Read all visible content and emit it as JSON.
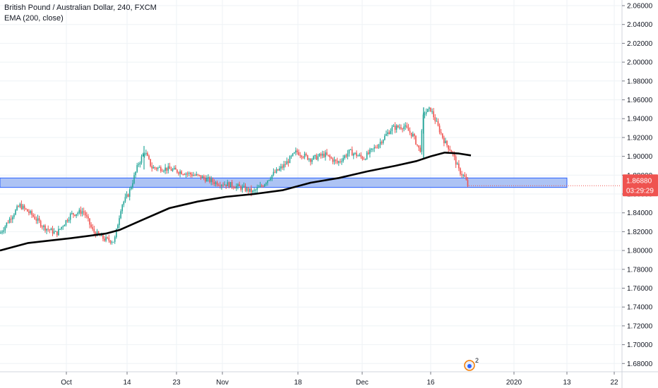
{
  "legend": {
    "symbol": "British Pound / Australian Dollar, 240, FXCM",
    "indicator": "EMA (200, close)"
  },
  "price_tag": {
    "price": "1.86880",
    "countdown": "03:29:29"
  },
  "badge": {
    "count": "2"
  },
  "colors": {
    "up": "#26a69a",
    "down": "#ef5350",
    "ema": "#000000",
    "zone_fill": "#9fb9f2",
    "zone_border": "#2962ff",
    "tag": "#ef5350",
    "grid": "#eef2f5",
    "axis": "#d1d4dc"
  },
  "chart_data": {
    "type": "candlestick",
    "y_ticks": [
      "2.06000",
      "2.04000",
      "2.02000",
      "2.00000",
      "1.98000",
      "1.96000",
      "1.94000",
      "1.92000",
      "1.90000",
      "1.88000",
      "1.86000",
      "1.84000",
      "1.82000",
      "1.80000",
      "1.78000",
      "1.76000",
      "1.74000",
      "1.72000",
      "1.70000",
      "1.68000"
    ],
    "ylim": [
      1.668,
      2.064
    ],
    "x_ticks": [
      "Oct",
      "14",
      "23",
      "Nov",
      "18",
      "Dec",
      "16",
      "2020",
      "13",
      "22"
    ],
    "last_price": 1.8688,
    "support_zone": {
      "low": 1.867,
      "high": 1.877
    },
    "price_path": [
      [
        0,
        1.818
      ],
      [
        15,
        1.835
      ],
      [
        28,
        1.848
      ],
      [
        45,
        1.838
      ],
      [
        62,
        1.825
      ],
      [
        80,
        1.818
      ],
      [
        100,
        1.838
      ],
      [
        118,
        1.842
      ],
      [
        132,
        1.82
      ],
      [
        148,
        1.812
      ],
      [
        162,
        1.81
      ],
      [
        172,
        1.848
      ],
      [
        182,
        1.86
      ],
      [
        196,
        1.892
      ],
      [
        205,
        1.905
      ],
      [
        215,
        1.888
      ],
      [
        235,
        1.887
      ],
      [
        260,
        1.883
      ],
      [
        285,
        1.878
      ],
      [
        305,
        1.872
      ],
      [
        325,
        1.87
      ],
      [
        345,
        1.866
      ],
      [
        358,
        1.862
      ],
      [
        370,
        1.868
      ],
      [
        385,
        1.88
      ],
      [
        402,
        1.89
      ],
      [
        420,
        1.905
      ],
      [
        440,
        1.897
      ],
      [
        460,
        1.902
      ],
      [
        478,
        1.893
      ],
      [
        495,
        1.905
      ],
      [
        515,
        1.898
      ],
      [
        535,
        1.912
      ],
      [
        555,
        1.93
      ],
      [
        572,
        1.932
      ],
      [
        585,
        1.922
      ],
      [
        595,
        1.905
      ],
      [
        600,
        1.946
      ],
      [
        610,
        1.95
      ],
      [
        620,
        1.932
      ],
      [
        630,
        1.915
      ],
      [
        640,
        1.905
      ],
      [
        650,
        1.885
      ],
      [
        658,
        1.878
      ],
      [
        664,
        1.866
      ]
    ],
    "ema_path": [
      [
        0,
        1.8
      ],
      [
        40,
        1.808
      ],
      [
        100,
        1.813
      ],
      [
        150,
        1.818
      ],
      [
        170,
        1.822
      ],
      [
        200,
        1.832
      ],
      [
        240,
        1.845
      ],
      [
        280,
        1.852
      ],
      [
        320,
        1.857
      ],
      [
        360,
        1.86
      ],
      [
        400,
        1.864
      ],
      [
        440,
        1.872
      ],
      [
        480,
        1.877
      ],
      [
        520,
        1.884
      ],
      [
        560,
        1.89
      ],
      [
        590,
        1.895
      ],
      [
        610,
        1.9
      ],
      [
        630,
        1.904
      ],
      [
        650,
        1.903
      ],
      [
        667,
        1.901
      ]
    ]
  }
}
